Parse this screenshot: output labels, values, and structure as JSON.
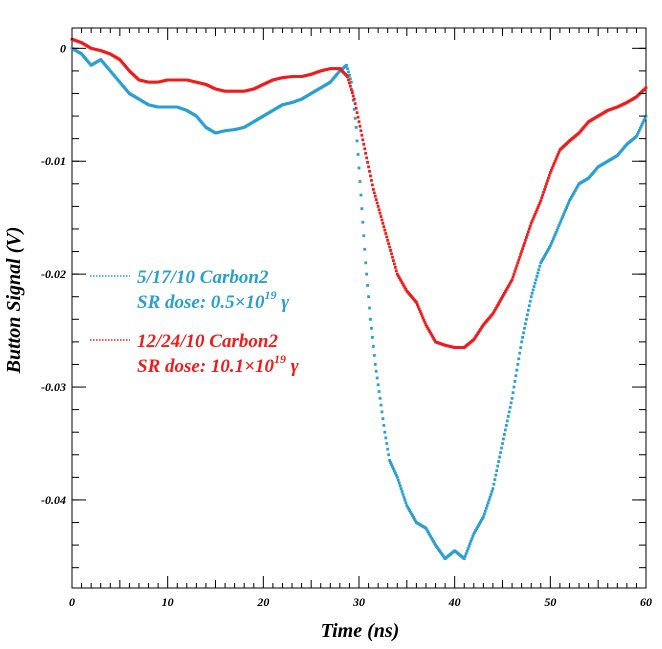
{
  "chart_data": {
    "type": "scatter",
    "title": "",
    "xlabel": "Time (ns)",
    "ylabel": "Button Signal (V)",
    "xlim": [
      0,
      60
    ],
    "ylim": [
      -0.0478,
      0.0018
    ],
    "x_ticks": [
      "0",
      "10",
      "20",
      "30",
      "40",
      "50",
      "60"
    ],
    "y_ticks": [
      "0",
      "-0.01",
      "-0.02",
      "-0.03",
      "-0.04"
    ],
    "grid": false,
    "legend_position": "middle-left",
    "series": [
      {
        "name": "5/17/10 Carbon2",
        "label_line2_prefix": "SR dose: 0.5×10",
        "label_line2_exp": "19",
        "label_line2_suffix": " γ",
        "color": "#2a9fd0",
        "points": [
          [
            0,
            0
          ],
          [
            1,
            -0.0005
          ],
          [
            2,
            -0.0015
          ],
          [
            3,
            -0.001
          ],
          [
            4,
            -0.002
          ],
          [
            5,
            -0.003
          ],
          [
            6,
            -0.004
          ],
          [
            7,
            -0.0045
          ],
          [
            8,
            -0.005
          ],
          [
            9,
            -0.0052
          ],
          [
            10,
            -0.0052
          ],
          [
            11,
            -0.0052
          ],
          [
            12,
            -0.0055
          ],
          [
            13,
            -0.006
          ],
          [
            14,
            -0.007
          ],
          [
            15,
            -0.0075
          ],
          [
            16,
            -0.0073
          ],
          [
            17,
            -0.0072
          ],
          [
            18,
            -0.007
          ],
          [
            19,
            -0.0065
          ],
          [
            20,
            -0.006
          ],
          [
            21,
            -0.0055
          ],
          [
            22,
            -0.005
          ],
          [
            23,
            -0.0048
          ],
          [
            24,
            -0.0045
          ],
          [
            25,
            -0.004
          ],
          [
            26,
            -0.0035
          ],
          [
            27,
            -0.003
          ],
          [
            28,
            -0.002
          ],
          [
            28.7,
            -0.0015
          ],
          [
            29.2,
            -0.003
          ],
          [
            29.7,
            -0.007
          ],
          [
            30.2,
            -0.013
          ],
          [
            30.7,
            -0.019
          ],
          [
            31.2,
            -0.024
          ],
          [
            31.7,
            -0.028
          ],
          [
            32.2,
            -0.031
          ],
          [
            32.7,
            -0.034
          ],
          [
            33.2,
            -0.0365
          ],
          [
            34,
            -0.038
          ],
          [
            35,
            -0.0405
          ],
          [
            36,
            -0.042
          ],
          [
            37,
            -0.0425
          ],
          [
            38,
            -0.044
          ],
          [
            39,
            -0.0452
          ],
          [
            40,
            -0.0445
          ],
          [
            41,
            -0.0452
          ],
          [
            42,
            -0.043
          ],
          [
            43,
            -0.0415
          ],
          [
            44,
            -0.039
          ],
          [
            45,
            -0.035
          ],
          [
            46,
            -0.031
          ],
          [
            47,
            -0.026
          ],
          [
            48,
            -0.022
          ],
          [
            49,
            -0.019
          ],
          [
            50,
            -0.0175
          ],
          [
            51,
            -0.0155
          ],
          [
            52,
            -0.0135
          ],
          [
            53,
            -0.012
          ],
          [
            54,
            -0.0115
          ],
          [
            55,
            -0.0105
          ],
          [
            56,
            -0.01
          ],
          [
            57,
            -0.0095
          ],
          [
            58,
            -0.0085
          ],
          [
            59,
            -0.0078
          ],
          [
            60,
            -0.006
          ]
        ]
      },
      {
        "name": "12/24/10 Carbon2",
        "label_line2_prefix": "SR dose: 10.1×10",
        "label_line2_exp": "19",
        "label_line2_suffix": " γ",
        "color": "#ee1c1c",
        "points": [
          [
            0,
            0.0008
          ],
          [
            1,
            0.0005
          ],
          [
            2,
            0
          ],
          [
            3,
            -0.0002
          ],
          [
            4,
            -0.0005
          ],
          [
            5,
            -0.001
          ],
          [
            6,
            -0.002
          ],
          [
            7,
            -0.0028
          ],
          [
            8,
            -0.003
          ],
          [
            9,
            -0.003
          ],
          [
            10,
            -0.0028
          ],
          [
            11,
            -0.0028
          ],
          [
            12,
            -0.0028
          ],
          [
            13,
            -0.003
          ],
          [
            14,
            -0.0032
          ],
          [
            15,
            -0.0036
          ],
          [
            16,
            -0.0038
          ],
          [
            17,
            -0.0038
          ],
          [
            18,
            -0.0038
          ],
          [
            19,
            -0.0036
          ],
          [
            20,
            -0.0032
          ],
          [
            21,
            -0.0028
          ],
          [
            22,
            -0.0026
          ],
          [
            23,
            -0.0025
          ],
          [
            24,
            -0.0025
          ],
          [
            25,
            -0.0023
          ],
          [
            26,
            -0.002
          ],
          [
            27,
            -0.0018
          ],
          [
            28,
            -0.0018
          ],
          [
            28.8,
            -0.0025
          ],
          [
            29.5,
            -0.0045
          ],
          [
            30,
            -0.0065
          ],
          [
            30.5,
            -0.0085
          ],
          [
            31,
            -0.0105
          ],
          [
            31.5,
            -0.0125
          ],
          [
            32,
            -0.014
          ],
          [
            32.5,
            -0.0155
          ],
          [
            33,
            -0.017
          ],
          [
            33.5,
            -0.0185
          ],
          [
            34,
            -0.02
          ],
          [
            35,
            -0.0215
          ],
          [
            36,
            -0.0225
          ],
          [
            37,
            -0.0245
          ],
          [
            38,
            -0.026
          ],
          [
            39,
            -0.0263
          ],
          [
            40,
            -0.0265
          ],
          [
            41,
            -0.0265
          ],
          [
            42,
            -0.0258
          ],
          [
            43,
            -0.0245
          ],
          [
            44,
            -0.0235
          ],
          [
            45,
            -0.022
          ],
          [
            46,
            -0.0205
          ],
          [
            47,
            -0.018
          ],
          [
            48,
            -0.0155
          ],
          [
            49,
            -0.0135
          ],
          [
            50,
            -0.011
          ],
          [
            51,
            -0.009
          ],
          [
            52,
            -0.0082
          ],
          [
            53,
            -0.0075
          ],
          [
            54,
            -0.0065
          ],
          [
            55,
            -0.006
          ],
          [
            56,
            -0.0055
          ],
          [
            57,
            -0.0052
          ],
          [
            58,
            -0.0048
          ],
          [
            59,
            -0.0043
          ],
          [
            60,
            -0.0035
          ]
        ]
      }
    ]
  }
}
